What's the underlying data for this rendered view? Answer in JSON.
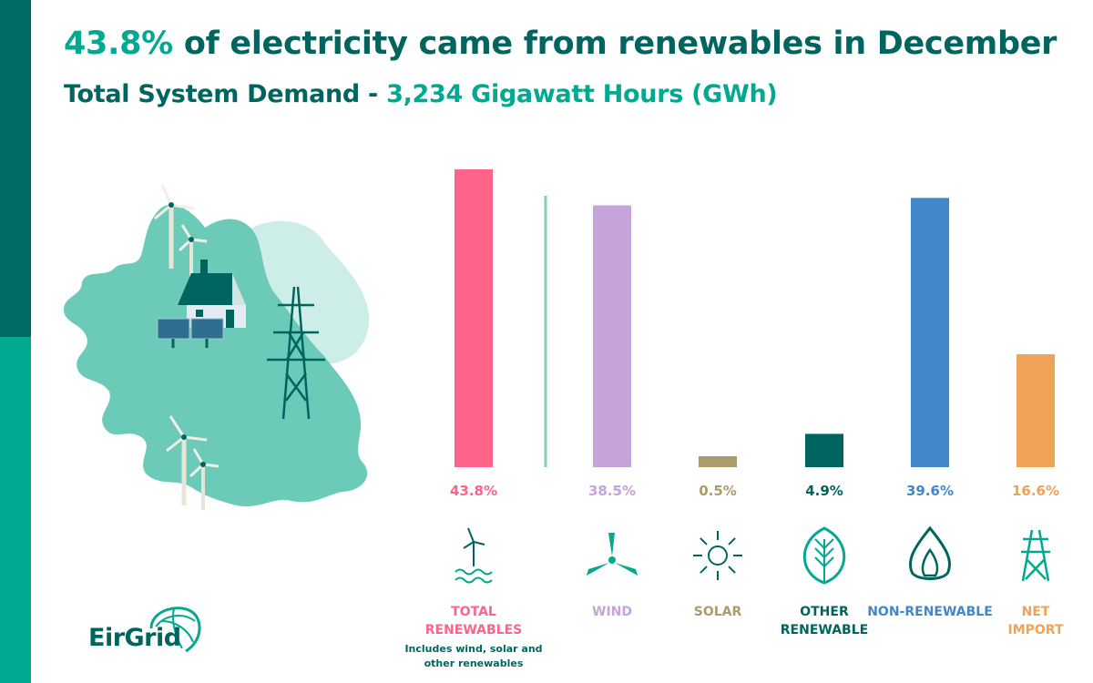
{
  "title": {
    "highlight": "43.8%",
    "text": " of electricity came from renewables in December"
  },
  "subtitle": {
    "text": "Total System Demand - ",
    "highlight": "3,234 Gigawatt Hours (GWh)"
  },
  "chart_data": {
    "type": "bar",
    "categories": [
      "TOTAL RENEWABLES",
      "WIND",
      "SOLAR",
      "OTHER RENEWABLE",
      "NON-RENEWABLE",
      "NET IMPORT"
    ],
    "values": [
      43.8,
      38.5,
      0.5,
      4.9,
      39.6,
      16.6
    ],
    "value_labels": [
      "43.8%",
      "38.5%",
      "0.5%",
      "4.9%",
      "39.6%",
      "16.6%"
    ],
    "category_label_lines": [
      [
        "TOTAL",
        "RENEWABLES"
      ],
      [
        "WIND"
      ],
      [
        "SOLAR"
      ],
      [
        "OTHER",
        "RENEWABLE"
      ],
      [
        "NON-RENEWABLE"
      ],
      [
        "NET",
        "IMPORT"
      ]
    ],
    "category_note": [
      "Includes wind, solar and",
      "other renewables"
    ],
    "colors": [
      "#fe6489",
      "#c6a3da",
      "#ab9d6b",
      "#00655f",
      "#4187c9",
      "#f0a257"
    ],
    "icons": [
      "wind-turbine-water-icon",
      "wind-blades-icon",
      "sun-icon",
      "leaf-icon",
      "flame-icon",
      "pylon-icon"
    ],
    "ylim": [
      0,
      45
    ],
    "grid": false,
    "legend": "none"
  },
  "logo": {
    "text": "EirGrid"
  }
}
